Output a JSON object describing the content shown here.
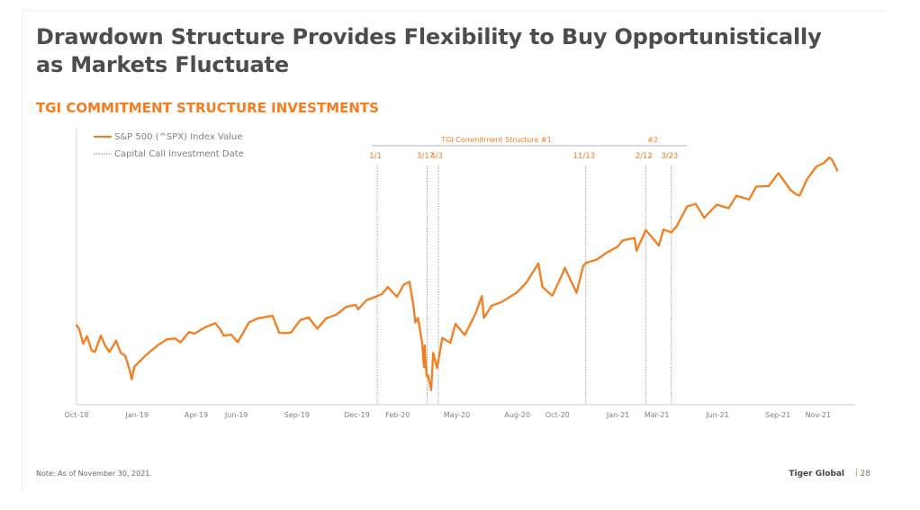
{
  "header": {
    "title": "Drawdown Structure Provides Flexibility to Buy Opportunistically as Markets Fluctuate",
    "subtitle": "TGI COMMITMENT STRUCTURE INVESTMENTS"
  },
  "footer": {
    "note": "Note: As of November 30, 2021.",
    "brand": "Tiger Global",
    "separator": "|",
    "page_number": "28"
  },
  "colors": {
    "accent": "#f47d20",
    "text": "#4d4d4d",
    "axis": "#cccccc",
    "vline": "#777777"
  },
  "chart_data": {
    "type": "line",
    "title": "",
    "xlabel": "",
    "ylabel": "",
    "legend_position": "top-left",
    "legend": [
      {
        "label": "S&P 500 (^SPX) Index Value",
        "style": "solid"
      },
      {
        "label": "Capital Call Investment Date",
        "style": "dotted"
      }
    ],
    "x_axis": {
      "range": [
        "2018-10-01",
        "2021-11-30"
      ],
      "ticks": [
        {
          "date": "2018-10-01",
          "label": "Oct-18"
        },
        {
          "date": "2019-01-01",
          "label": "Jan-19"
        },
        {
          "date": "2019-04-01",
          "label": "Apr-19"
        },
        {
          "date": "2019-06-01",
          "label": "Jun-19"
        },
        {
          "date": "2019-09-01",
          "label": "Sep-19"
        },
        {
          "date": "2019-12-01",
          "label": "Dec-19"
        },
        {
          "date": "2020-02-01",
          "label": "Feb-20"
        },
        {
          "date": "2020-05-01",
          "label": "May-20"
        },
        {
          "date": "2020-08-01",
          "label": "Aug-20"
        },
        {
          "date": "2020-10-01",
          "label": "Oct-20"
        },
        {
          "date": "2021-01-01",
          "label": "Jan-21"
        },
        {
          "date": "2021-03-01",
          "label": "Mar-21"
        },
        {
          "date": "2021-06-01",
          "label": "Jun-21"
        },
        {
          "date": "2021-09-01",
          "label": "Sep-21"
        },
        {
          "date": "2021-11-01",
          "label": "Nov-21"
        }
      ]
    },
    "ylim": [
      2100,
      4800
    ],
    "series": [
      {
        "name": "S&P 500 (^SPX) Index Value",
        "points": [
          [
            "2018-10-01",
            2924
          ],
          [
            "2018-10-05",
            2886
          ],
          [
            "2018-10-11",
            2728
          ],
          [
            "2018-10-17",
            2809
          ],
          [
            "2018-10-24",
            2656
          ],
          [
            "2018-10-29",
            2641
          ],
          [
            "2018-11-07",
            2814
          ],
          [
            "2018-11-14",
            2701
          ],
          [
            "2018-11-20",
            2641
          ],
          [
            "2018-11-30",
            2760
          ],
          [
            "2018-12-07",
            2633
          ],
          [
            "2018-12-14",
            2600
          ],
          [
            "2018-12-20",
            2467
          ],
          [
            "2018-12-24",
            2351
          ],
          [
            "2018-12-28",
            2486
          ],
          [
            "2019-01-04",
            2532
          ],
          [
            "2019-01-15",
            2610
          ],
          [
            "2019-01-31",
            2704
          ],
          [
            "2019-02-15",
            2775
          ],
          [
            "2019-02-28",
            2784
          ],
          [
            "2019-03-08",
            2743
          ],
          [
            "2019-03-21",
            2854
          ],
          [
            "2019-03-29",
            2834
          ],
          [
            "2019-04-15",
            2905
          ],
          [
            "2019-04-30",
            2946
          ],
          [
            "2019-05-07",
            2884
          ],
          [
            "2019-05-13",
            2812
          ],
          [
            "2019-05-24",
            2826
          ],
          [
            "2019-06-03",
            2744
          ],
          [
            "2019-06-20",
            2954
          ],
          [
            "2019-07-03",
            2996
          ],
          [
            "2019-07-26",
            3025
          ],
          [
            "2019-08-05",
            2845
          ],
          [
            "2019-08-14",
            2840
          ],
          [
            "2019-08-23",
            2847
          ],
          [
            "2019-09-06",
            2979
          ],
          [
            "2019-09-19",
            3006
          ],
          [
            "2019-10-02",
            2888
          ],
          [
            "2019-10-15",
            2996
          ],
          [
            "2019-10-31",
            3037
          ],
          [
            "2019-11-15",
            3120
          ],
          [
            "2019-11-29",
            3141
          ],
          [
            "2019-12-03",
            3093
          ],
          [
            "2019-12-16",
            3191
          ],
          [
            "2019-12-31",
            3231
          ],
          [
            "2020-01-08",
            3254
          ],
          [
            "2020-01-17",
            3330
          ],
          [
            "2020-01-31",
            3226
          ],
          [
            "2020-02-10",
            3352
          ],
          [
            "2020-02-19",
            3386
          ],
          [
            "2020-02-25",
            3128
          ],
          [
            "2020-02-28",
            2954
          ],
          [
            "2020-03-03",
            3003
          ],
          [
            "2020-03-09",
            2747
          ],
          [
            "2020-03-12",
            2481
          ],
          [
            "2020-03-13",
            2711
          ],
          [
            "2020-03-16",
            2386
          ],
          [
            "2020-03-18",
            2398
          ],
          [
            "2020-03-23",
            2237
          ],
          [
            "2020-03-26",
            2630
          ],
          [
            "2020-04-01",
            2470
          ],
          [
            "2020-04-09",
            2790
          ],
          [
            "2020-04-21",
            2737
          ],
          [
            "2020-04-29",
            2940
          ],
          [
            "2020-05-13",
            2820
          ],
          [
            "2020-05-29",
            3044
          ],
          [
            "2020-06-08",
            3232
          ],
          [
            "2020-06-11",
            3002
          ],
          [
            "2020-06-23",
            3131
          ],
          [
            "2020-07-08",
            3170
          ],
          [
            "2020-07-31",
            3271
          ],
          [
            "2020-08-14",
            3373
          ],
          [
            "2020-09-02",
            3580
          ],
          [
            "2020-09-08",
            3331
          ],
          [
            "2020-09-23",
            3237
          ],
          [
            "2020-10-09",
            3477
          ],
          [
            "2020-10-12",
            3534
          ],
          [
            "2020-10-30",
            3270
          ],
          [
            "2020-11-09",
            3550
          ],
          [
            "2020-11-13",
            3585
          ],
          [
            "2020-11-30",
            3622
          ],
          [
            "2020-12-15",
            3695
          ],
          [
            "2020-12-31",
            3756
          ],
          [
            "2021-01-08",
            3824
          ],
          [
            "2021-01-26",
            3850
          ],
          [
            "2021-01-29",
            3714
          ],
          [
            "2021-02-12",
            3934
          ],
          [
            "2021-02-25",
            3829
          ],
          [
            "2021-03-04",
            3768
          ],
          [
            "2021-03-11",
            3939
          ],
          [
            "2021-03-23",
            3910
          ],
          [
            "2021-03-31",
            3973
          ],
          [
            "2021-04-16",
            4185
          ],
          [
            "2021-04-29",
            4211
          ],
          [
            "2021-05-12",
            4063
          ],
          [
            "2021-05-31",
            4204
          ],
          [
            "2021-06-18",
            4166
          ],
          [
            "2021-06-30",
            4298
          ],
          [
            "2021-07-19",
            4258
          ],
          [
            "2021-07-30",
            4395
          ],
          [
            "2021-08-18",
            4400
          ],
          [
            "2021-08-31",
            4523
          ],
          [
            "2021-09-02",
            4537
          ],
          [
            "2021-09-20",
            4358
          ],
          [
            "2021-09-30",
            4308
          ],
          [
            "2021-10-04",
            4300
          ],
          [
            "2021-10-15",
            4471
          ],
          [
            "2021-10-29",
            4605
          ],
          [
            "2021-11-10",
            4646
          ],
          [
            "2021-11-18",
            4704
          ],
          [
            "2021-11-22",
            4682
          ],
          [
            "2021-11-30",
            4567
          ]
        ]
      }
    ],
    "capital_calls": [
      {
        "date": "2020-01-01",
        "label": "1/1"
      },
      {
        "date": "2020-03-17",
        "label": "3/17"
      },
      {
        "date": "2020-04-03",
        "label": "4/3"
      },
      {
        "date": "2020-11-13",
        "label": "11/13"
      },
      {
        "date": "2021-02-12",
        "label": "2/12"
      },
      {
        "date": "2021-03-23",
        "label": "3/23"
      }
    ],
    "periods": [
      {
        "label": "TGI Commitment Structure #1",
        "start": "2020-01-01",
        "end": "2020-12-31"
      },
      {
        "label": "#2",
        "start": "2021-01-10",
        "end": "2021-04-10"
      }
    ]
  }
}
